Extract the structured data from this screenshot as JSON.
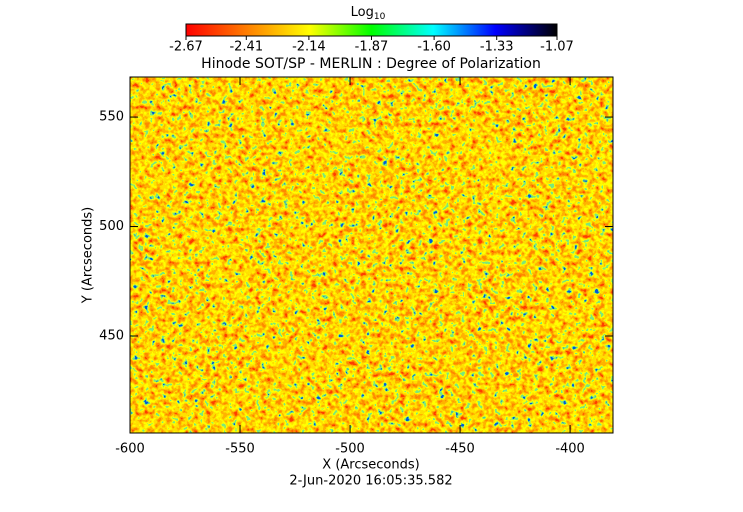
{
  "chart_data": {
    "type": "heatmap",
    "title": "Hinode SOT/SP - MERLIN : Degree of Polarization",
    "subtitle": "2-Jun-2020 16:05:35.582",
    "x_label": "X (Arcseconds)",
    "y_label": "Y (Arcseconds)",
    "xlim": [
      -600,
      -380.5
    ],
    "ylim": [
      405.7,
      568.3
    ],
    "xticks": [
      -600,
      -550,
      -500,
      -450,
      -400
    ],
    "yticks": [
      450,
      500,
      550
    ],
    "colorbar_label": "Log",
    "colorbar_label_sub": "10",
    "colorbar_lim": [
      -2.67,
      -1.07
    ],
    "colorbar_ticks": [
      -2.67,
      -2.41,
      -2.14,
      -1.87,
      {
        "value": -1.6,
        "label": "-1.60"
      },
      -1.33,
      -1.07
    ],
    "colormap": [
      "#ff0000",
      "#ff8000",
      "#ffff00",
      "#00ff00",
      "#00ffff",
      "#0000ff",
      "#000000"
    ]
  }
}
